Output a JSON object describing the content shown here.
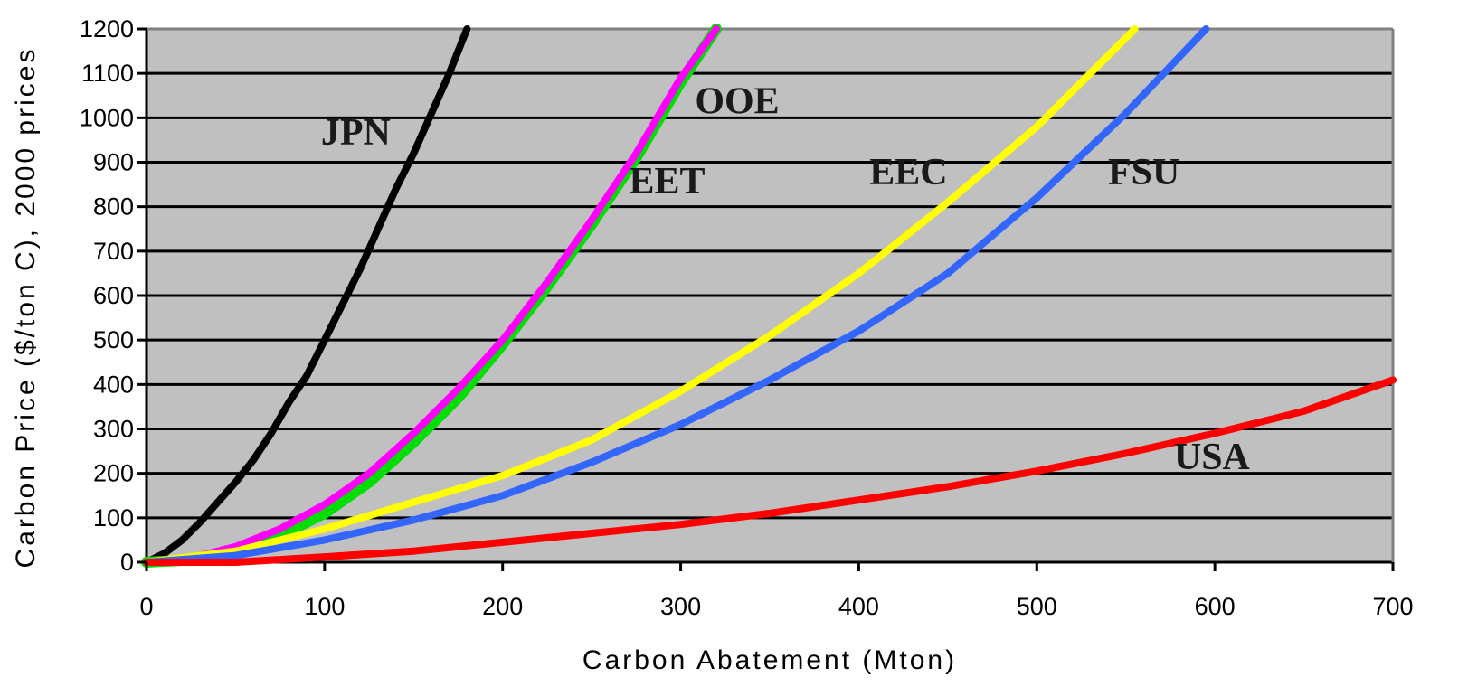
{
  "chart_data": {
    "type": "line",
    "title": "",
    "xlabel": "Carbon Abatement (Mton)",
    "ylabel": "Carbon Price ($/ton C), 2000 prices",
    "xlim": [
      0,
      700
    ],
    "ylim": [
      0,
      1200
    ],
    "xticks": [
      "0",
      "100",
      "200",
      "300",
      "400",
      "500",
      "600",
      "700"
    ],
    "yticks": [
      "0",
      "100",
      "200",
      "300",
      "400",
      "500",
      "600",
      "700",
      "800",
      "900",
      "1000",
      "1100",
      "1200"
    ],
    "grid": "horizontal",
    "plot_background": "#c0c0c0",
    "series": [
      {
        "name": "JPN",
        "color": "#000000",
        "x": [
          0,
          10,
          20,
          30,
          40,
          50,
          60,
          70,
          80,
          90,
          100,
          110,
          120,
          130,
          140,
          150,
          160,
          170,
          180
        ],
        "y": [
          0,
          20,
          50,
          90,
          135,
          180,
          230,
          290,
          360,
          420,
          500,
          580,
          660,
          750,
          840,
          920,
          1010,
          1100,
          1200
        ]
      },
      {
        "name": "OOE",
        "color": "#00dd00",
        "x": [
          0,
          25,
          50,
          75,
          100,
          125,
          150,
          175,
          200,
          225,
          250,
          275,
          300,
          320
        ],
        "y": [
          0,
          5,
          25,
          60,
          110,
          180,
          270,
          370,
          490,
          620,
          760,
          910,
          1080,
          1200
        ]
      },
      {
        "name": "EET",
        "color": "#ff00ff",
        "x": [
          0,
          25,
          50,
          75,
          100,
          125,
          150,
          175,
          200,
          225,
          250,
          275,
          300,
          320
        ],
        "y": [
          0,
          10,
          35,
          75,
          130,
          200,
          290,
          390,
          500,
          630,
          770,
          920,
          1090,
          1200
        ]
      },
      {
        "name": "EEC",
        "color": "#ffff00",
        "x": [
          0,
          50,
          100,
          150,
          200,
          250,
          300,
          350,
          400,
          450,
          500,
          555
        ],
        "y": [
          0,
          25,
          75,
          135,
          195,
          275,
          385,
          510,
          650,
          810,
          980,
          1200
        ]
      },
      {
        "name": "FSU",
        "color": "#3366ff",
        "x": [
          0,
          50,
          100,
          150,
          200,
          250,
          300,
          350,
          400,
          450,
          500,
          550,
          595
        ],
        "y": [
          0,
          15,
          50,
          95,
          150,
          225,
          310,
          410,
          520,
          650,
          820,
          1010,
          1200
        ]
      },
      {
        "name": "USA",
        "color": "#ff0000",
        "x": [
          0,
          50,
          100,
          150,
          200,
          250,
          300,
          350,
          400,
          450,
          500,
          550,
          600,
          650,
          700
        ],
        "y": [
          0,
          0,
          12,
          25,
          45,
          65,
          85,
          110,
          140,
          170,
          205,
          245,
          290,
          340,
          410
        ]
      }
    ],
    "annotations": [
      {
        "text": "JPN",
        "x": 98,
        "y": 940
      },
      {
        "text": "OOE",
        "x": 308,
        "y": 1010
      },
      {
        "text": "EET",
        "x": 271,
        "y": 830
      },
      {
        "text": "EEC",
        "x": 406,
        "y": 850
      },
      {
        "text": "FSU",
        "x": 540,
        "y": 850
      },
      {
        "text": "USA",
        "x": 577,
        "y": 210
      }
    ]
  }
}
